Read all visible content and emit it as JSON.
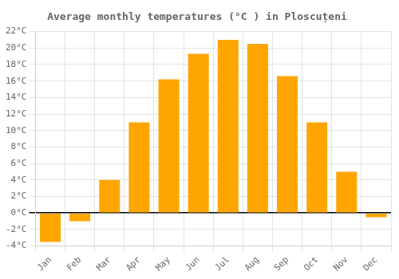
{
  "chart_data": {
    "type": "bar",
    "title": "Average monthly temperatures (°C ) in Ploscuțeni",
    "categories": [
      "Jan",
      "Feb",
      "Mar",
      "Apr",
      "May",
      "Jun",
      "Jul",
      "Aug",
      "Sep",
      "Oct",
      "Nov",
      "Dec"
    ],
    "values": [
      -3.5,
      -1.0,
      4.0,
      11.0,
      16.2,
      19.3,
      21.0,
      20.5,
      16.6,
      11.0,
      5.0,
      -0.5
    ],
    "color": "#FFA500",
    "ylim": [
      -4,
      22
    ],
    "yticks": [
      {
        "value": -4,
        "label": "-4°C"
      },
      {
        "value": -2,
        "label": "-2°C"
      },
      {
        "value": 0,
        "label": "0°C"
      },
      {
        "value": 2,
        "label": "2°C"
      },
      {
        "value": 4,
        "label": "4°C"
      },
      {
        "value": 6,
        "label": "6°C"
      },
      {
        "value": 8,
        "label": "8°C"
      },
      {
        "value": 10,
        "label": "10°C"
      },
      {
        "value": 12,
        "label": "12°C"
      },
      {
        "value": 14,
        "label": "14°C"
      },
      {
        "value": 16,
        "label": "16°C"
      },
      {
        "value": 18,
        "label": "18°C"
      },
      {
        "value": 20,
        "label": "20°C"
      },
      {
        "value": 22,
        "label": "22°C"
      }
    ],
    "grid": true
  }
}
